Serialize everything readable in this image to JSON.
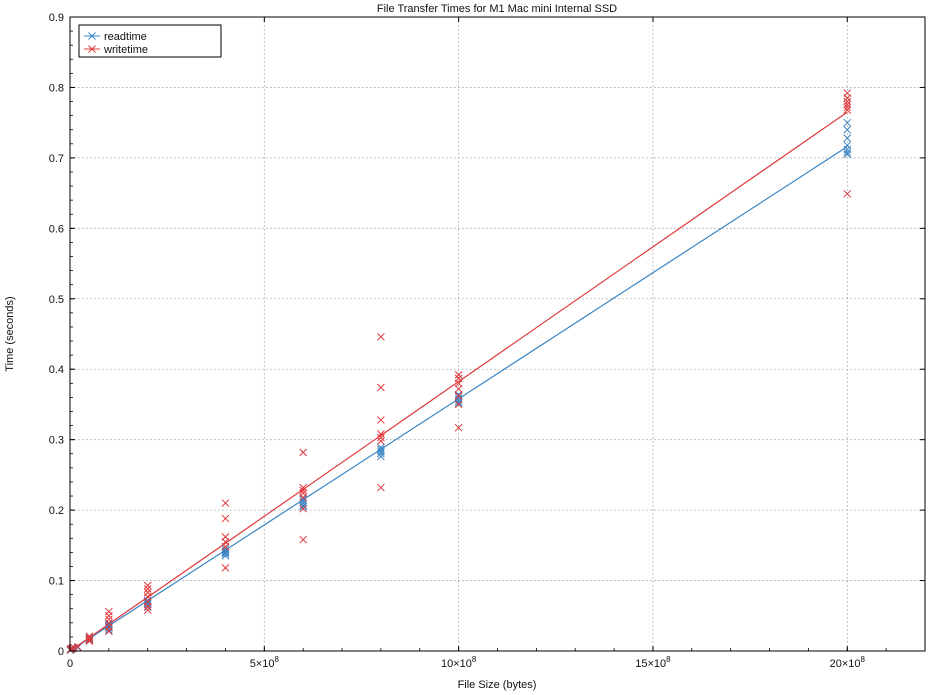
{
  "chart_data": {
    "type": "scatter",
    "title": "File Transfer Times for M1 Mac mini Internal SSD",
    "xlabel": "File Size (bytes)",
    "ylabel": "Time (seconds)",
    "xlim": [
      0,
      2200000000
    ],
    "ylim": [
      0,
      0.9
    ],
    "grid": true,
    "legend_position": "top-left",
    "x_ticks": [
      {
        "value": 0,
        "label": "0"
      },
      {
        "value": 500000000,
        "label": "5×10",
        "exp": "8"
      },
      {
        "value": 1000000000,
        "label": "10×10",
        "exp": "8"
      },
      {
        "value": 1500000000,
        "label": "15×10",
        "exp": "8"
      },
      {
        "value": 2000000000,
        "label": "20×10",
        "exp": "8"
      }
    ],
    "y_ticks": [
      {
        "value": 0,
        "label": "0"
      },
      {
        "value": 0.1,
        "label": "0.1"
      },
      {
        "value": 0.2,
        "label": "0.2"
      },
      {
        "value": 0.3,
        "label": "0.3"
      },
      {
        "value": 0.4,
        "label": "0.4"
      },
      {
        "value": 0.5,
        "label": "0.5"
      },
      {
        "value": 0.6,
        "label": "0.6"
      },
      {
        "value": 0.7,
        "label": "0.7"
      },
      {
        "value": 0.8,
        "label": "0.8"
      },
      {
        "value": 0.9,
        "label": "0.9"
      }
    ],
    "series": [
      {
        "name": "readtime",
        "color": "#3a85c4",
        "marker": "x",
        "points": [
          [
            1000000,
            0.001
          ],
          [
            2000000,
            0.002
          ],
          [
            5000000,
            0.003
          ],
          [
            10000000,
            0.004
          ],
          [
            20000000,
            0.005
          ],
          [
            50000000,
            0.015
          ],
          [
            50000000,
            0.017
          ],
          [
            50000000,
            0.018
          ],
          [
            100000000,
            0.03
          ],
          [
            100000000,
            0.033
          ],
          [
            100000000,
            0.035
          ],
          [
            100000000,
            0.037
          ],
          [
            100000000,
            0.038
          ],
          [
            200000000,
            0.062
          ],
          [
            200000000,
            0.066
          ],
          [
            200000000,
            0.068
          ],
          [
            200000000,
            0.07
          ],
          [
            200000000,
            0.072
          ],
          [
            400000000,
            0.135
          ],
          [
            400000000,
            0.138
          ],
          [
            400000000,
            0.14
          ],
          [
            400000000,
            0.142
          ],
          [
            400000000,
            0.145
          ],
          [
            600000000,
            0.205
          ],
          [
            600000000,
            0.207
          ],
          [
            600000000,
            0.21
          ],
          [
            600000000,
            0.213
          ],
          [
            600000000,
            0.216
          ],
          [
            800000000,
            0.276
          ],
          [
            800000000,
            0.28
          ],
          [
            800000000,
            0.283
          ],
          [
            800000000,
            0.286
          ],
          [
            800000000,
            0.289
          ],
          [
            1000000000,
            0.352
          ],
          [
            1000000000,
            0.355
          ],
          [
            1000000000,
            0.358
          ],
          [
            1000000000,
            0.361
          ],
          [
            1000000000,
            0.364
          ],
          [
            2000000000,
            0.705
          ],
          [
            2000000000,
            0.708
          ],
          [
            2000000000,
            0.712
          ],
          [
            2000000000,
            0.718
          ],
          [
            2000000000,
            0.728
          ],
          [
            2000000000,
            0.74
          ],
          [
            2000000000,
            0.75
          ]
        ],
        "fit": [
          [
            0,
            0.0
          ],
          [
            2000000000,
            0.716
          ]
        ]
      },
      {
        "name": "writetime",
        "color": "#e0383b",
        "marker": "x",
        "points": [
          [
            1000000,
            0.002
          ],
          [
            2000000,
            0.003
          ],
          [
            5000000,
            0.004
          ],
          [
            10000000,
            0.005
          ],
          [
            20000000,
            0.006
          ],
          [
            50000000,
            0.014
          ],
          [
            50000000,
            0.016
          ],
          [
            50000000,
            0.019
          ],
          [
            50000000,
            0.021
          ],
          [
            100000000,
            0.028
          ],
          [
            100000000,
            0.034
          ],
          [
            100000000,
            0.04
          ],
          [
            100000000,
            0.045
          ],
          [
            100000000,
            0.05
          ],
          [
            100000000,
            0.056
          ],
          [
            200000000,
            0.058
          ],
          [
            200000000,
            0.063
          ],
          [
            200000000,
            0.07
          ],
          [
            200000000,
            0.077
          ],
          [
            200000000,
            0.083
          ],
          [
            200000000,
            0.088
          ],
          [
            200000000,
            0.093
          ],
          [
            400000000,
            0.118
          ],
          [
            400000000,
            0.148
          ],
          [
            400000000,
            0.155
          ],
          [
            400000000,
            0.162
          ],
          [
            400000000,
            0.188
          ],
          [
            400000000,
            0.21
          ],
          [
            600000000,
            0.158
          ],
          [
            600000000,
            0.202
          ],
          [
            600000000,
            0.218
          ],
          [
            600000000,
            0.224
          ],
          [
            600000000,
            0.228
          ],
          [
            600000000,
            0.232
          ],
          [
            600000000,
            0.282
          ],
          [
            800000000,
            0.232
          ],
          [
            800000000,
            0.298
          ],
          [
            800000000,
            0.303
          ],
          [
            800000000,
            0.308
          ],
          [
            800000000,
            0.328
          ],
          [
            800000000,
            0.374
          ],
          [
            800000000,
            0.446
          ],
          [
            1000000000,
            0.317
          ],
          [
            1000000000,
            0.35
          ],
          [
            1000000000,
            0.362
          ],
          [
            1000000000,
            0.372
          ],
          [
            1000000000,
            0.38
          ],
          [
            1000000000,
            0.387
          ],
          [
            1000000000,
            0.392
          ],
          [
            2000000000,
            0.649
          ],
          [
            2000000000,
            0.768
          ],
          [
            2000000000,
            0.772
          ],
          [
            2000000000,
            0.776
          ],
          [
            2000000000,
            0.78
          ],
          [
            2000000000,
            0.785
          ],
          [
            2000000000,
            0.792
          ]
        ],
        "fit": [
          [
            0,
            0.0
          ],
          [
            2000000000,
            0.765
          ]
        ]
      }
    ]
  }
}
